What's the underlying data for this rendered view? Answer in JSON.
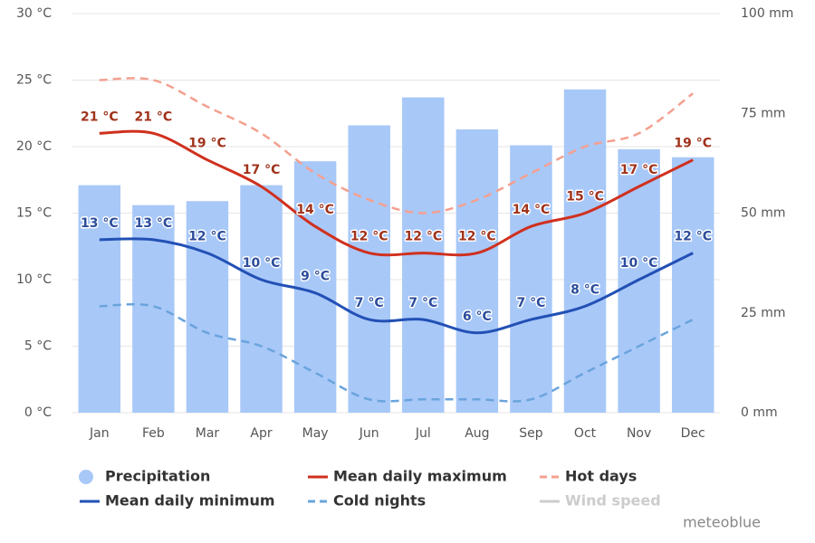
{
  "chart_data": {
    "type": "combo",
    "categories": [
      "Jan",
      "Feb",
      "Mar",
      "Apr",
      "May",
      "Jun",
      "Jul",
      "Aug",
      "Sep",
      "Oct",
      "Nov",
      "Dec"
    ],
    "ylim": [
      0,
      30
    ],
    "yticks": [
      {
        "value": 0,
        "label": "0 °C"
      },
      {
        "value": 5,
        "label": "5 °C"
      },
      {
        "value": 10,
        "label": "10 °C"
      },
      {
        "value": 15,
        "label": "15 °C"
      },
      {
        "value": 20,
        "label": "20 °C"
      },
      {
        "value": 25,
        "label": "25 °C"
      },
      {
        "value": 30,
        "label": "30 °C"
      }
    ],
    "y2lim": [
      0,
      100
    ],
    "y2ticks": [
      {
        "value": 0,
        "label": "0 mm"
      },
      {
        "value": 25,
        "label": "25 mm"
      },
      {
        "value": 50,
        "label": "50 mm"
      },
      {
        "value": 75,
        "label": "75 mm"
      },
      {
        "value": 100,
        "label": "100 mm"
      }
    ],
    "grid": true,
    "series": [
      {
        "name": "Precipitation",
        "type": "bar",
        "axis": "y2",
        "color": "#a8c8f8",
        "values": [
          57,
          52,
          53,
          57,
          63,
          72,
          79,
          71,
          67,
          81,
          66,
          64
        ]
      },
      {
        "name": "Mean daily maximum",
        "type": "line",
        "color": "#d0301e",
        "label_color": "#a0321c",
        "values": [
          21,
          21,
          19,
          17,
          14,
          12,
          12,
          12,
          14,
          15,
          17,
          19
        ],
        "value_labels": [
          "21 °C",
          "21 °C",
          "19 °C",
          "17 °C",
          "14 °C",
          "12 °C",
          "12 °C",
          "12 °C",
          "14 °C",
          "15 °C",
          "17 °C",
          "19 °C"
        ]
      },
      {
        "name": "Hot days",
        "type": "line",
        "dashed": true,
        "color": "#f4a090",
        "values": [
          25,
          25,
          23,
          21,
          18,
          16,
          15,
          16,
          18,
          20,
          21,
          24
        ]
      },
      {
        "name": "Mean daily minimum",
        "type": "line",
        "color": "#2250b5",
        "label_color": "#2c4d9b",
        "values": [
          13,
          13,
          12,
          10,
          9,
          7,
          7,
          6,
          7,
          8,
          10,
          12
        ],
        "value_labels": [
          "13 °C",
          "13 °C",
          "12 °C",
          "10 °C",
          "9 °C",
          "7 °C",
          "7 °C",
          "6 °C",
          "7 °C",
          "8 °C",
          "10 °C",
          "12 °C"
        ]
      },
      {
        "name": "Cold nights",
        "type": "line",
        "dashed": true,
        "color": "#6aa4dc",
        "values": [
          8,
          8,
          6,
          5,
          3,
          1,
          1,
          1,
          1,
          3,
          5,
          7
        ]
      }
    ],
    "inactive_legend": [
      {
        "name": "Wind speed",
        "color": "#cccccc"
      }
    ],
    "credit": "meteoblue"
  }
}
